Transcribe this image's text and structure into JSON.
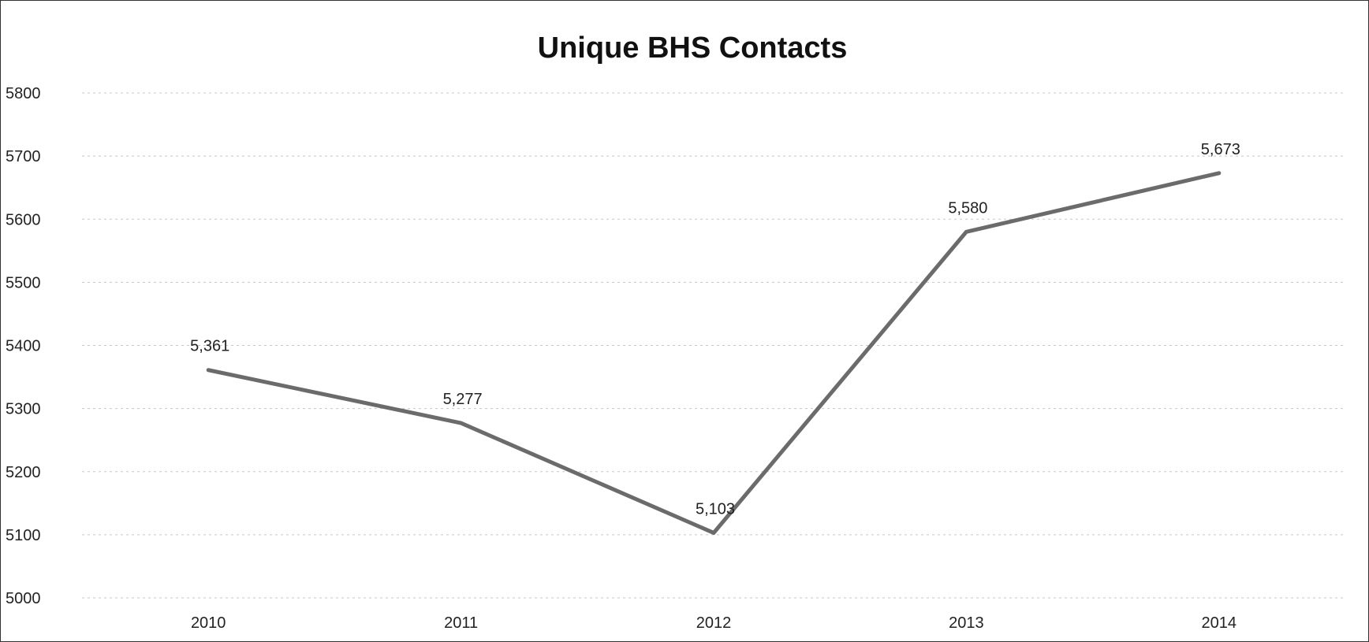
{
  "chart_data": {
    "type": "line",
    "title": "Unique BHS Contacts",
    "xlabel": "",
    "ylabel": "",
    "categories": [
      "2010",
      "2011",
      "2012",
      "2013",
      "2014"
    ],
    "series": [
      {
        "values": [
          5361,
          5277,
          5103,
          5580,
          5673
        ],
        "labels": [
          "5,361",
          "5,277",
          "5,103",
          "5,580",
          "5,673"
        ],
        "color": "#6b6b6b"
      }
    ],
    "ylim": [
      5000,
      5800
    ],
    "yticks": [
      "5000",
      "5100",
      "5200",
      "5300",
      "5400",
      "5500",
      "5600",
      "5700",
      "5800"
    ],
    "grid": true,
    "legend": "none"
  }
}
